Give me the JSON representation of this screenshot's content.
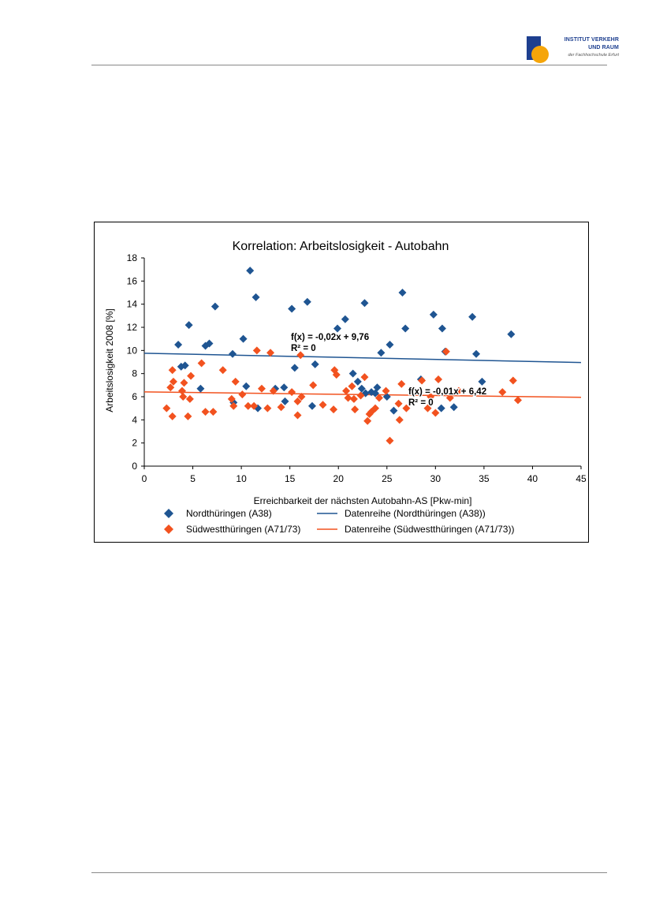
{
  "header": {
    "logo_line1": "INSTITUT VERKEHR",
    "logo_line2": "UND RAUM",
    "logo_line3": "der Fachhochschule Erfurt"
  },
  "colors": {
    "nord": "#1f5592",
    "sued": "#f2521f",
    "nord_trend": "#1f5592",
    "sued_trend": "#f2521f",
    "rule": "#888888"
  },
  "chart_data": {
    "type": "scatter",
    "title": "Korrelation: Arbeitslosigkeit - Autobahn",
    "xlabel": "Erreichbarkeit der nächsten Autobahn-AS [Pkw-min]",
    "ylabel": "Arbeitslosigkeit 2008 [%]",
    "xlim": [
      0,
      45
    ],
    "ylim": [
      0,
      18
    ],
    "xticks": [
      "0",
      "5",
      "10",
      "15",
      "20",
      "25",
      "30",
      "35",
      "40",
      "45"
    ],
    "yticks": [
      "0",
      "2",
      "4",
      "6",
      "8",
      "10",
      "12",
      "14",
      "16",
      "18"
    ],
    "grid": false,
    "legend_position": "bottom",
    "series": [
      {
        "name": "Nordthüringen (A38)",
        "marker": "diamond",
        "points": [
          [
            3.5,
            10.5
          ],
          [
            3.8,
            8.6
          ],
          [
            4.2,
            8.7
          ],
          [
            4.6,
            12.2
          ],
          [
            5.8,
            6.7
          ],
          [
            6.3,
            10.4
          ],
          [
            6.7,
            10.6
          ],
          [
            7.3,
            13.8
          ],
          [
            9.1,
            9.7
          ],
          [
            9.2,
            5.5
          ],
          [
            10.2,
            11.0
          ],
          [
            10.5,
            6.9
          ],
          [
            10.9,
            16.9
          ],
          [
            11.5,
            14.6
          ],
          [
            11.7,
            5.0
          ],
          [
            13.5,
            6.7
          ],
          [
            14.4,
            6.8
          ],
          [
            14.5,
            5.6
          ],
          [
            15.2,
            13.6
          ],
          [
            15.5,
            8.5
          ],
          [
            16.8,
            14.2
          ],
          [
            17.3,
            5.2
          ],
          [
            17.6,
            8.8
          ],
          [
            19.9,
            11.9
          ],
          [
            20.7,
            12.7
          ],
          [
            21.5,
            8.0
          ],
          [
            22.0,
            7.3
          ],
          [
            22.4,
            6.7
          ],
          [
            22.7,
            14.1
          ],
          [
            22.8,
            6.3
          ],
          [
            23.4,
            6.4
          ],
          [
            23.8,
            6.3
          ],
          [
            24.0,
            6.8
          ],
          [
            24.4,
            9.8
          ],
          [
            25.0,
            6.0
          ],
          [
            25.3,
            10.5
          ],
          [
            25.7,
            4.8
          ],
          [
            26.6,
            15.0
          ],
          [
            26.9,
            11.9
          ],
          [
            28.5,
            7.5
          ],
          [
            29.8,
            13.1
          ],
          [
            30.6,
            5.0
          ],
          [
            30.7,
            11.9
          ],
          [
            31.0,
            9.9
          ],
          [
            31.9,
            5.1
          ],
          [
            33.8,
            12.9
          ],
          [
            34.2,
            9.7
          ],
          [
            34.8,
            7.3
          ],
          [
            37.8,
            11.4
          ]
        ],
        "trend": {
          "label": "f(x) = -0,02x + 9,76",
          "r2": "R² = 0",
          "slope": -0.0178,
          "intercept": 9.76
        }
      },
      {
        "name": "Südwestthüringen (A71/73)",
        "marker": "diamond",
        "points": [
          [
            2.3,
            5.0
          ],
          [
            2.7,
            6.8
          ],
          [
            2.9,
            8.3
          ],
          [
            2.9,
            4.3
          ],
          [
            3.0,
            7.3
          ],
          [
            3.9,
            6.5
          ],
          [
            4.0,
            6.0
          ],
          [
            4.1,
            7.2
          ],
          [
            4.5,
            4.3
          ],
          [
            4.7,
            5.8
          ],
          [
            4.8,
            7.8
          ],
          [
            5.9,
            8.9
          ],
          [
            6.3,
            4.7
          ],
          [
            7.1,
            4.7
          ],
          [
            8.1,
            8.3
          ],
          [
            9.0,
            5.8
          ],
          [
            9.2,
            5.2
          ],
          [
            9.4,
            7.3
          ],
          [
            10.1,
            6.2
          ],
          [
            10.7,
            5.2
          ],
          [
            11.3,
            5.2
          ],
          [
            11.6,
            10.0
          ],
          [
            12.1,
            6.7
          ],
          [
            12.7,
            5.0
          ],
          [
            13.0,
            9.8
          ],
          [
            13.3,
            6.5
          ],
          [
            14.1,
            5.1
          ],
          [
            15.2,
            6.4
          ],
          [
            15.8,
            5.6
          ],
          [
            15.8,
            4.4
          ],
          [
            16.1,
            9.6
          ],
          [
            16.2,
            6.0
          ],
          [
            17.4,
            7.0
          ],
          [
            18.4,
            5.3
          ],
          [
            19.5,
            4.9
          ],
          [
            19.6,
            8.3
          ],
          [
            19.8,
            7.9
          ],
          [
            20.8,
            6.5
          ],
          [
            21.0,
            5.9
          ],
          [
            21.4,
            6.9
          ],
          [
            21.6,
            5.8
          ],
          [
            21.7,
            4.9
          ],
          [
            22.3,
            6.1
          ],
          [
            22.7,
            7.7
          ],
          [
            23.0,
            3.9
          ],
          [
            23.2,
            4.5
          ],
          [
            23.4,
            4.7
          ],
          [
            23.8,
            5.0
          ],
          [
            24.2,
            5.9
          ],
          [
            24.9,
            6.5
          ],
          [
            25.3,
            2.2
          ],
          [
            26.2,
            5.4
          ],
          [
            26.3,
            4.0
          ],
          [
            26.5,
            7.1
          ],
          [
            27.0,
            5.0
          ],
          [
            28.6,
            7.4
          ],
          [
            29.2,
            5.0
          ],
          [
            29.5,
            6.0
          ],
          [
            30.0,
            4.6
          ],
          [
            30.3,
            7.5
          ],
          [
            31.1,
            9.9
          ],
          [
            31.5,
            5.9
          ],
          [
            32.4,
            6.5
          ],
          [
            36.9,
            6.4
          ],
          [
            38.0,
            7.4
          ],
          [
            38.5,
            5.7
          ]
        ],
        "trend": {
          "label": "f(x) = -0,01x + 6,42",
          "r2": "R² = 0",
          "slope": -0.0105,
          "intercept": 6.42
        }
      }
    ],
    "legend": {
      "nord_points": "Nordthüringen (A38)",
      "nord_line": "Datenreihe (Nordthüringen (A38))",
      "sued_points": "Südwestthüringen (A71/73)",
      "sued_line": "Datenreihe (Südwestthüringen (A71/73))"
    }
  }
}
